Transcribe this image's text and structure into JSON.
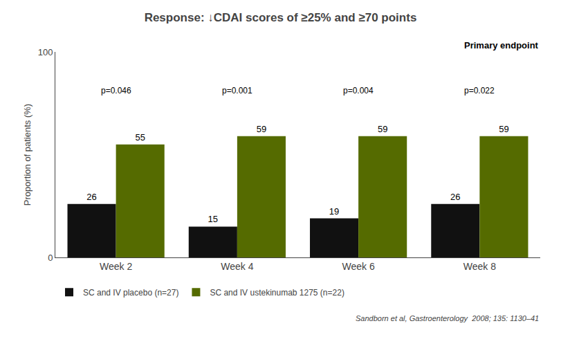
{
  "chart_data": {
    "type": "bar",
    "title": "Response: ↓CDAI scores of ≥25% and ≥70 points",
    "ylabel": "Proportion of patients (%)",
    "categories": [
      "Week 2",
      "Week 4",
      "Week 6",
      "Week 8"
    ],
    "series": [
      {
        "name": "SC and IV placebo (n=27)",
        "color": "#111111",
        "values": [
          26,
          15,
          19,
          26
        ]
      },
      {
        "name": "SC and IV ustekinumab 1275 (n=22)",
        "color": "#556B00",
        "values": [
          55,
          59,
          59,
          59
        ]
      }
    ],
    "annotations": [
      {
        "text": "p=0.046",
        "category": "Week 2"
      },
      {
        "text": "p=0.001",
        "category": "Week 4"
      },
      {
        "text": "p=0.004",
        "category": "Week 6"
      },
      {
        "text": "p=0.022",
        "category": "Week 8"
      },
      {
        "text": "Primary endpoint"
      },
      {
        "text": "Sandborn et al, Gastroenterology  2008; 135: 1130–41"
      }
    ],
    "ylim": [
      0,
      100
    ],
    "yticks": [
      0,
      100
    ],
    "grid": false,
    "legend": "bottom",
    "data_labels": true
  }
}
